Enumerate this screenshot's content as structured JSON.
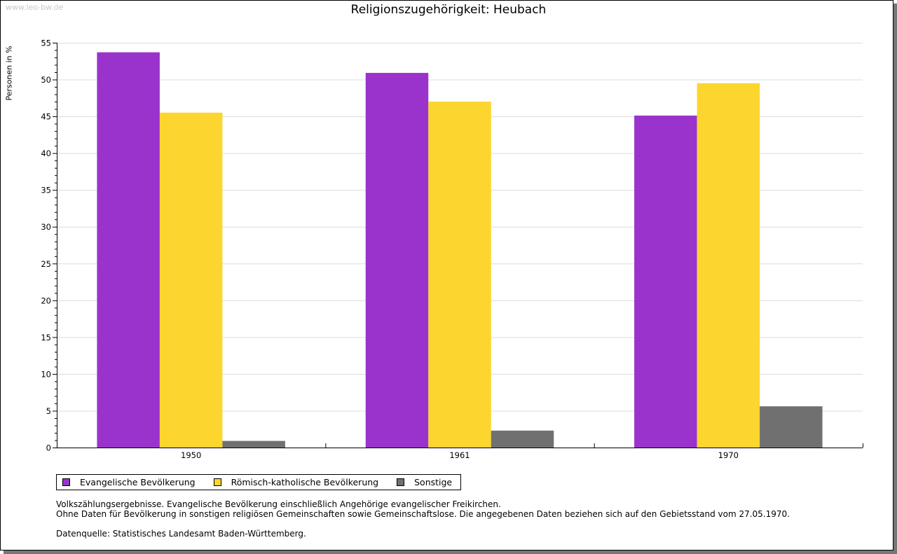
{
  "site": "www.leo-bw.de",
  "chart_data": {
    "type": "bar",
    "title": "Religionszugehörigkeit: Heubach",
    "ylabel": "Personen in %",
    "xlabel": "",
    "ylim": [
      0,
      55
    ],
    "yticks": [
      "0",
      "5",
      "10",
      "15",
      "20",
      "25",
      "30",
      "35",
      "40",
      "45",
      "50",
      "55"
    ],
    "categories": [
      "1950",
      "1961",
      "1970"
    ],
    "grid": true,
    "legend_position": "bottom-left",
    "series": [
      {
        "name": "Evangelische Bevölkerung",
        "color": "#9933cc",
        "values": [
          53.7,
          50.9,
          45.1
        ]
      },
      {
        "name": "Römisch-katholische Bevölkerung",
        "color": "#fcd52f",
        "values": [
          45.5,
          47.0,
          49.5
        ]
      },
      {
        "name": "Sonstige",
        "color": "#707070",
        "values": [
          0.9,
          2.3,
          5.6
        ]
      }
    ]
  },
  "notes": [
    "Volkszählungsergebnisse. Evangelische Bevölkerung einschließlich Angehörige evangelischer Freikirchen.",
    "Ohne Daten für Bevölkerung in sonstigen religiösen Gemeinschaften sowie Gemeinschaftslose. Die angegebenen Daten beziehen sich auf den Gebietsstand vom 27.05.1970.",
    "Datenquelle: Statistisches Landesamt Baden-Württemberg."
  ]
}
